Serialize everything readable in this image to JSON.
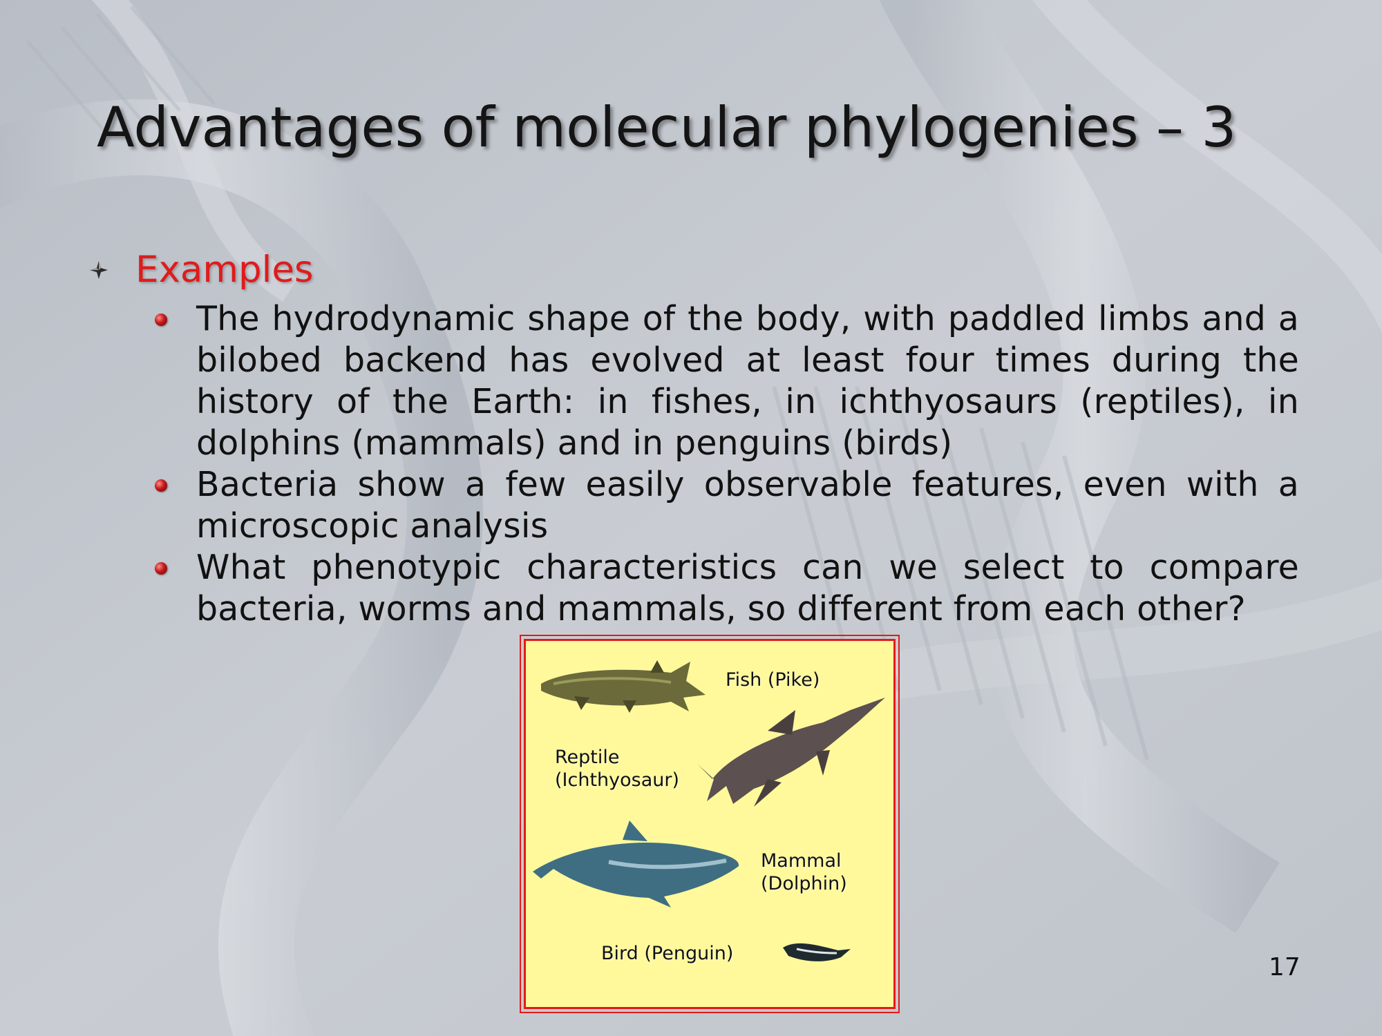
{
  "slide": {
    "title": "Advantages of molecular phylogenies – 3",
    "heading": "Examples",
    "bullets": [
      "The hydrodynamic shape of the body, with paddled limbs and a bilobed backend has evolved at least four times during the history of the Earth: in fishes, in ichthyosaurs (reptiles), in dolphins (mammals) and in penguins (birds)",
      "Bacteria show a few easily observable features, even with a microscopic analysis",
      "What phenotypic characteristics can we select to compare bacteria, worms and mammals, so different from each other?"
    ],
    "page_number": "17"
  },
  "figure": {
    "labels": {
      "fish": "Fish (Pike)",
      "reptile_line1": "Reptile",
      "reptile_line2": "(Ichthyosaur)",
      "mammal_line1": "Mammal",
      "mammal_line2": "(Dolphin)",
      "bird": "Bird (Penguin)"
    }
  },
  "colors": {
    "heading": "#e01b1b",
    "figure_background": "#fff99c",
    "figure_border": "#e31a1a"
  }
}
